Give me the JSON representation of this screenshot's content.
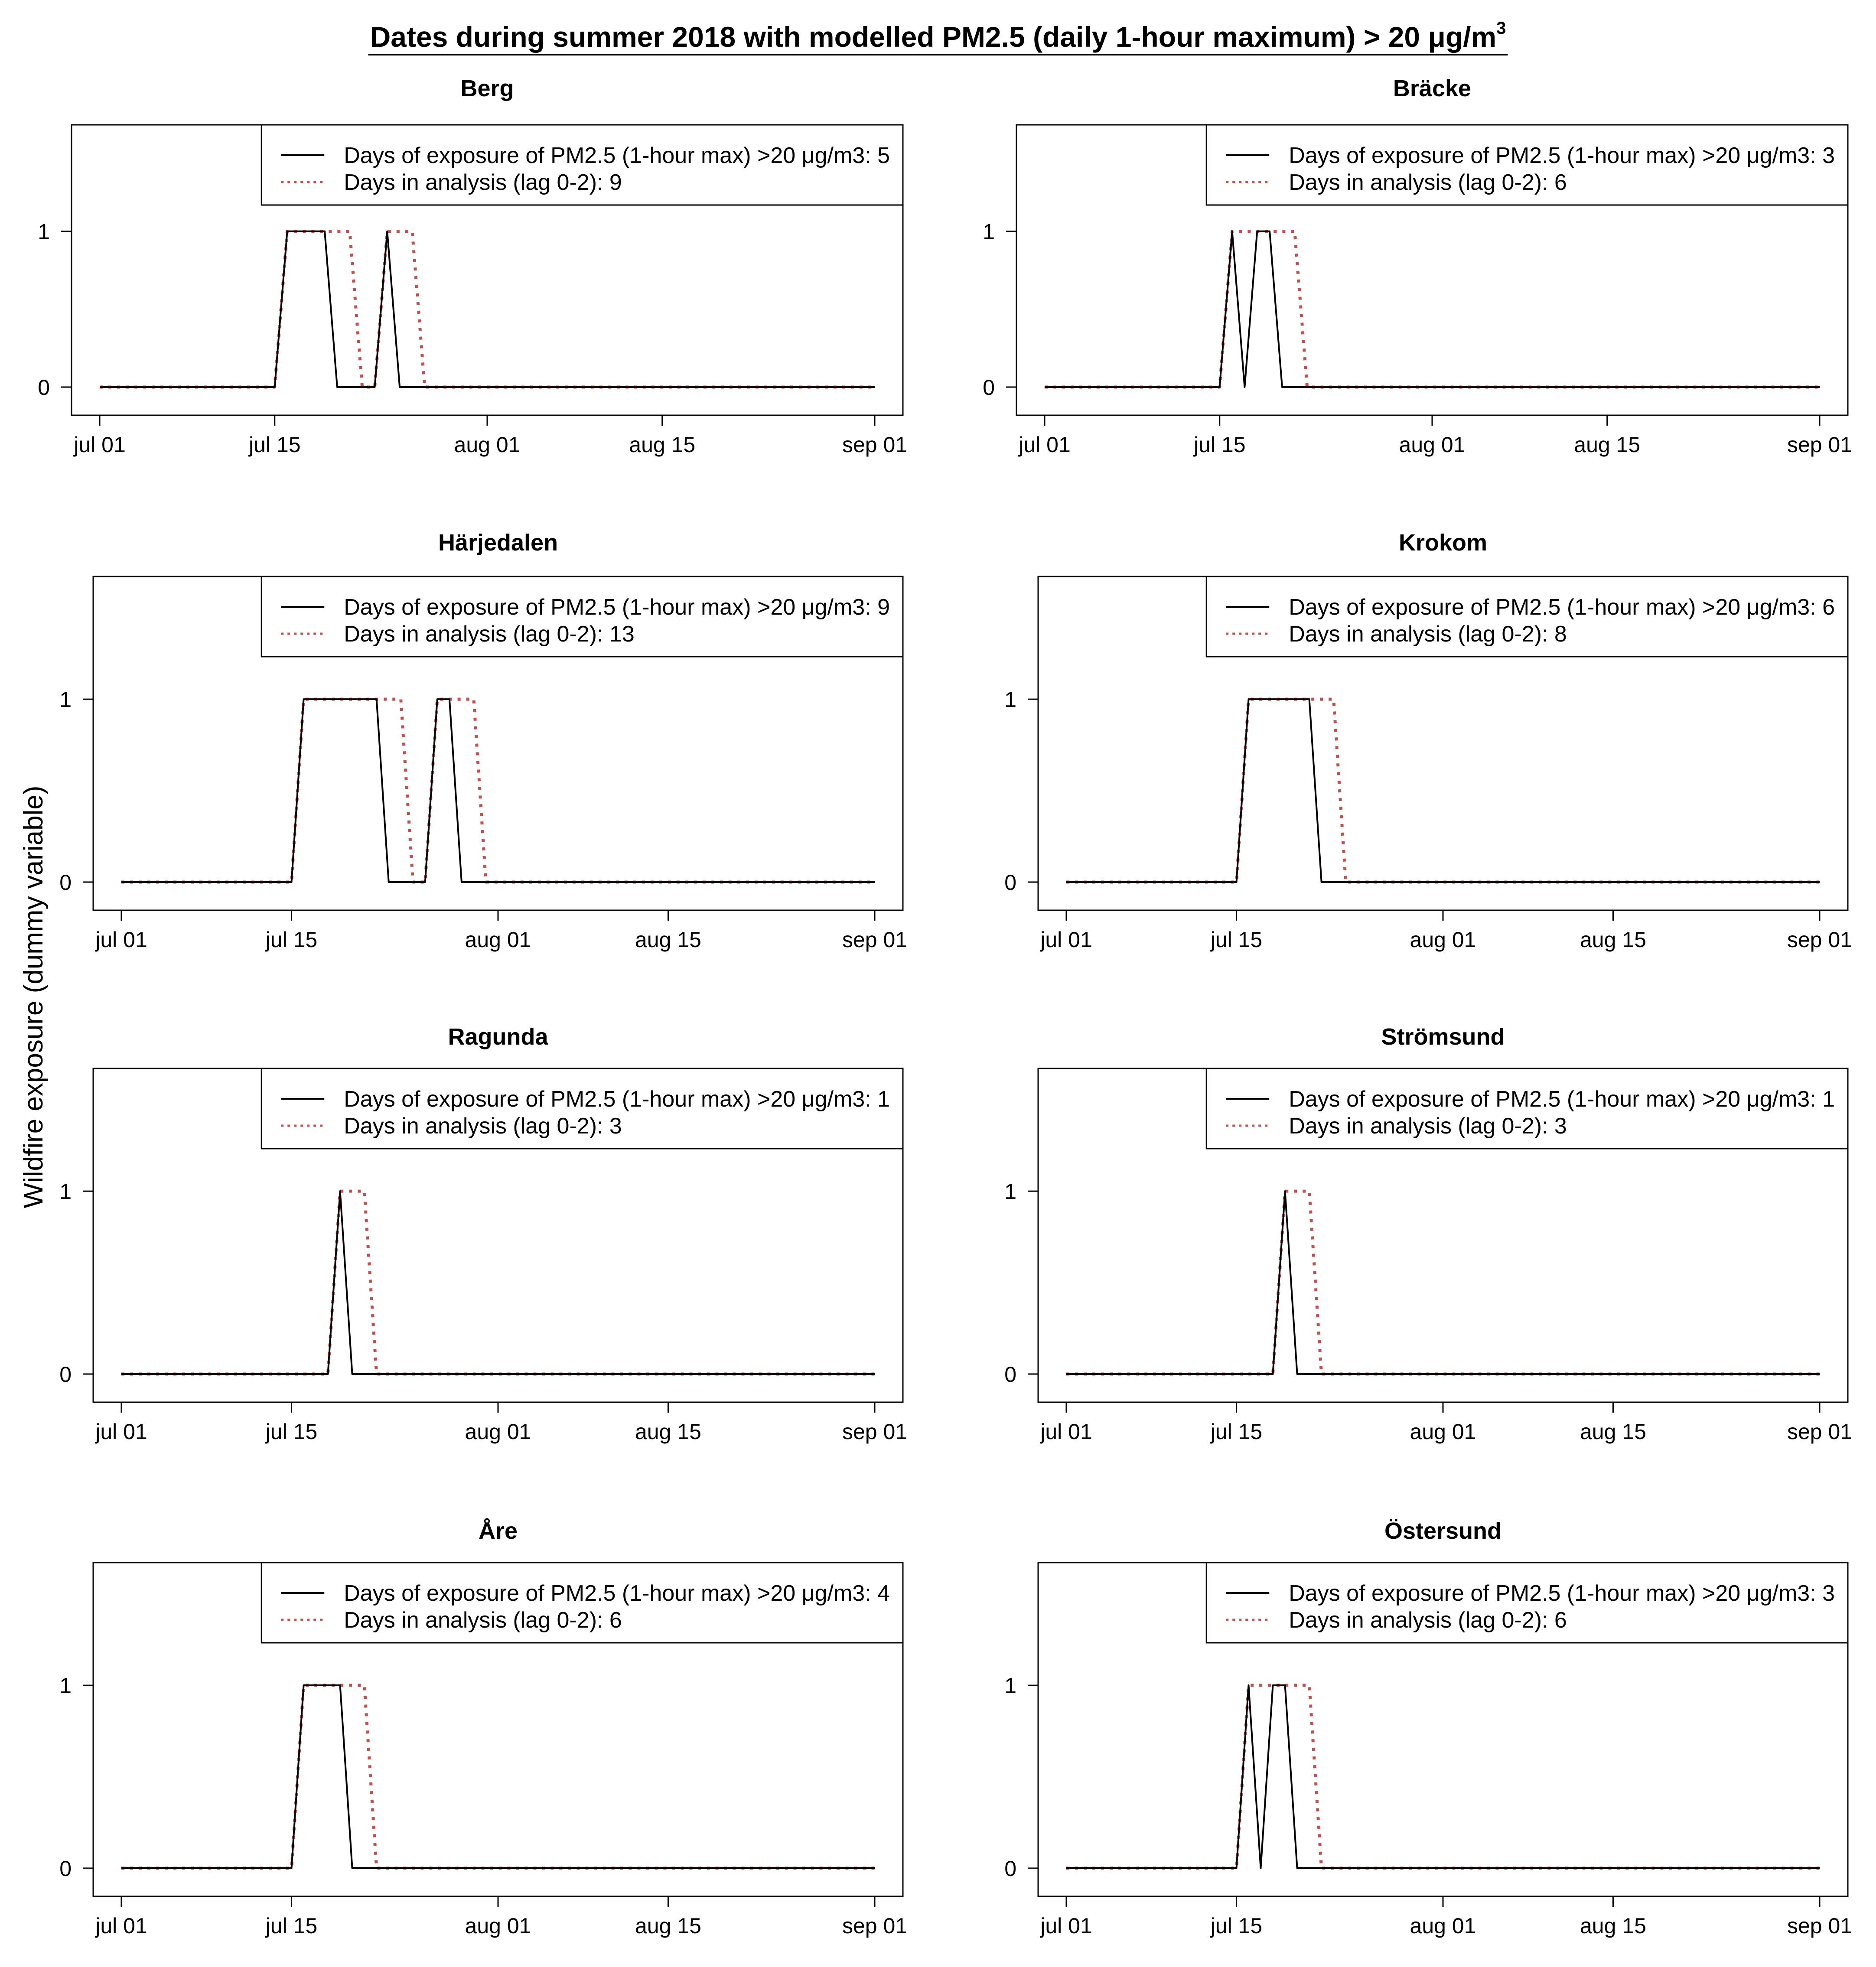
{
  "figure": {
    "title": "Dates during summer 2018 with modelled PM2.5 (daily 1-hour maximum) > 20 μg/m",
    "title_superscript": "3",
    "ylabel": "Wildfire exposure (dummy variable)"
  },
  "colors": {
    "exposure_line": "#000000",
    "analysis_line": "#c0504d",
    "axis": "#000000",
    "background": "#ffffff"
  },
  "chart_data": [
    {
      "type": "line",
      "title": "Berg",
      "xlabel": "",
      "ylabel": "Wildfire exposure (dummy variable)",
      "x_ticks": [
        "jul 01",
        "jul 15",
        "aug 01",
        "aug 15",
        "sep 01"
      ],
      "y_ticks": [
        "0",
        "1"
      ],
      "ylim": [
        0,
        1.6
      ],
      "legend": "top-right",
      "series": [
        {
          "name": "Days of exposure of PM2.5 (1-hour max) >20 μg/m3: 5",
          "style": "solid",
          "active_dates": [
            "2018-07-16",
            "2018-07-17",
            "2018-07-18",
            "2018-07-19",
            "2018-07-24"
          ]
        },
        {
          "name": "Days in analysis (lag 0-2): 9",
          "style": "dotted",
          "active_dates": [
            "2018-07-16",
            "2018-07-17",
            "2018-07-18",
            "2018-07-19",
            "2018-07-20",
            "2018-07-21",
            "2018-07-24",
            "2018-07-25",
            "2018-07-26"
          ]
        }
      ]
    },
    {
      "type": "line",
      "title": "Bräcke",
      "xlabel": "",
      "ylabel": "Wildfire exposure (dummy variable)",
      "x_ticks": [
        "jul 01",
        "jul 15",
        "aug 01",
        "aug 15",
        "sep 01"
      ],
      "y_ticks": [
        "0",
        "1"
      ],
      "ylim": [
        0,
        1.6
      ],
      "legend": "top-right",
      "series": [
        {
          "name": "Days of exposure of PM2.5 (1-hour max) >20 μg/m3: 3",
          "style": "solid",
          "active_dates": [
            "2018-07-16",
            "2018-07-18",
            "2018-07-19"
          ]
        },
        {
          "name": "Days in analysis (lag 0-2): 6",
          "style": "dotted",
          "active_dates": [
            "2018-07-16",
            "2018-07-17",
            "2018-07-18",
            "2018-07-19",
            "2018-07-20",
            "2018-07-21"
          ]
        }
      ]
    },
    {
      "type": "line",
      "title": "Härjedalen",
      "xlabel": "",
      "ylabel": "Wildfire exposure (dummy variable)",
      "x_ticks": [
        "jul 01",
        "jul 15",
        "aug 01",
        "aug 15",
        "sep 01"
      ],
      "y_ticks": [
        "0",
        "1"
      ],
      "ylim": [
        0,
        1.6
      ],
      "legend": "top-right",
      "series": [
        {
          "name": "Days of exposure of PM2.5 (1-hour max) >20 μg/m3: 9",
          "style": "solid",
          "active_dates": [
            "2018-07-16",
            "2018-07-17",
            "2018-07-18",
            "2018-07-19",
            "2018-07-20",
            "2018-07-21",
            "2018-07-22",
            "2018-07-27",
            "2018-07-28"
          ]
        },
        {
          "name": "Days in analysis (lag 0-2): 13",
          "style": "dotted",
          "active_dates": [
            "2018-07-16",
            "2018-07-17",
            "2018-07-18",
            "2018-07-19",
            "2018-07-20",
            "2018-07-21",
            "2018-07-22",
            "2018-07-23",
            "2018-07-24",
            "2018-07-27",
            "2018-07-28",
            "2018-07-29",
            "2018-07-30"
          ]
        }
      ]
    },
    {
      "type": "line",
      "title": "Krokom",
      "xlabel": "",
      "ylabel": "Wildfire exposure (dummy variable)",
      "x_ticks": [
        "jul 01",
        "jul 15",
        "aug 01",
        "aug 15",
        "sep 01"
      ],
      "y_ticks": [
        "0",
        "1"
      ],
      "ylim": [
        0,
        1.6
      ],
      "legend": "top-right",
      "series": [
        {
          "name": "Days of exposure of PM2.5 (1-hour max) >20 μg/m3: 6",
          "style": "solid",
          "active_dates": [
            "2018-07-16",
            "2018-07-17",
            "2018-07-18",
            "2018-07-19",
            "2018-07-20",
            "2018-07-21"
          ]
        },
        {
          "name": "Days in analysis (lag 0-2): 8",
          "style": "dotted",
          "active_dates": [
            "2018-07-16",
            "2018-07-17",
            "2018-07-18",
            "2018-07-19",
            "2018-07-20",
            "2018-07-21",
            "2018-07-22",
            "2018-07-23"
          ]
        }
      ]
    },
    {
      "type": "line",
      "title": "Ragunda",
      "xlabel": "",
      "ylabel": "Wildfire exposure (dummy variable)",
      "x_ticks": [
        "jul 01",
        "jul 15",
        "aug 01",
        "aug 15",
        "sep 01"
      ],
      "y_ticks": [
        "0",
        "1"
      ],
      "ylim": [
        0,
        1.6
      ],
      "legend": "top-right",
      "series": [
        {
          "name": "Days of exposure of PM2.5 (1-hour max) >20 μg/m3: 1",
          "style": "solid",
          "active_dates": [
            "2018-07-19"
          ]
        },
        {
          "name": "Days in analysis (lag 0-2): 3",
          "style": "dotted",
          "active_dates": [
            "2018-07-19",
            "2018-07-20",
            "2018-07-21"
          ]
        }
      ]
    },
    {
      "type": "line",
      "title": "Strömsund",
      "xlabel": "",
      "ylabel": "Wildfire exposure (dummy variable)",
      "x_ticks": [
        "jul 01",
        "jul 15",
        "aug 01",
        "aug 15",
        "sep 01"
      ],
      "y_ticks": [
        "0",
        "1"
      ],
      "ylim": [
        0,
        1.6
      ],
      "legend": "top-right",
      "series": [
        {
          "name": "Days of exposure of PM2.5 (1-hour max) >20 μg/m3: 1",
          "style": "solid",
          "active_dates": [
            "2018-07-19"
          ]
        },
        {
          "name": "Days in analysis (lag 0-2): 3",
          "style": "dotted",
          "active_dates": [
            "2018-07-19",
            "2018-07-20",
            "2018-07-21"
          ]
        }
      ]
    },
    {
      "type": "line",
      "title": "Åre",
      "xlabel": "",
      "ylabel": "Wildfire exposure (dummy variable)",
      "x_ticks": [
        "jul 01",
        "jul 15",
        "aug 01",
        "aug 15",
        "sep 01"
      ],
      "y_ticks": [
        "0",
        "1"
      ],
      "ylim": [
        0,
        1.6
      ],
      "legend": "top-right",
      "series": [
        {
          "name": "Days of exposure of PM2.5 (1-hour max) >20 μg/m3: 4",
          "style": "solid",
          "active_dates": [
            "2018-07-16",
            "2018-07-17",
            "2018-07-18",
            "2018-07-19"
          ]
        },
        {
          "name": "Days in analysis (lag 0-2): 6",
          "style": "dotted",
          "active_dates": [
            "2018-07-16",
            "2018-07-17",
            "2018-07-18",
            "2018-07-19",
            "2018-07-20",
            "2018-07-21"
          ]
        }
      ]
    },
    {
      "type": "line",
      "title": "Östersund",
      "xlabel": "",
      "ylabel": "Wildfire exposure (dummy variable)",
      "x_ticks": [
        "jul 01",
        "jul 15",
        "aug 01",
        "aug 15",
        "sep 01"
      ],
      "y_ticks": [
        "0",
        "1"
      ],
      "ylim": [
        0,
        1.6
      ],
      "legend": "top-right",
      "series": [
        {
          "name": "Days of exposure of PM2.5 (1-hour max) >20 μg/m3: 3",
          "style": "solid",
          "active_dates": [
            "2018-07-16",
            "2018-07-18",
            "2018-07-19"
          ]
        },
        {
          "name": "Days in analysis (lag 0-2): 6",
          "style": "dotted",
          "active_dates": [
            "2018-07-16",
            "2018-07-17",
            "2018-07-18",
            "2018-07-19",
            "2018-07-20",
            "2018-07-21"
          ]
        }
      ]
    }
  ]
}
